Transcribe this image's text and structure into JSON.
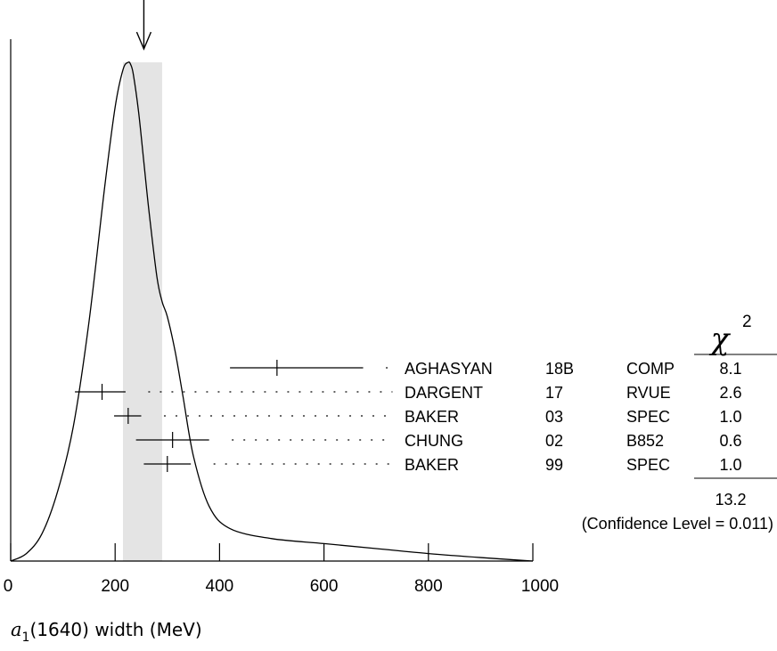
{
  "chart_data": {
    "type": "ideogram",
    "xlabel": {
      "symbol": "a",
      "subscript": "1",
      "rest": "(1640) width (MeV)"
    },
    "xlim": [
      0,
      1000
    ],
    "x_ticks": [
      "0",
      "200",
      "400",
      "600",
      "800",
      "1000"
    ],
    "x_tick_values": [
      0,
      200,
      400,
      600,
      800,
      1000
    ],
    "average": {
      "value": 255,
      "error_low": 215,
      "error_high": 290
    },
    "curve": {
      "x": [
        0,
        30,
        60,
        90,
        120,
        150,
        180,
        200,
        215,
        225,
        230,
        235,
        245,
        255,
        265,
        280,
        290,
        300,
        315,
        330,
        350,
        380,
        420,
        500,
        600,
        700,
        800,
        900,
        1000
      ],
      "y": [
        0.0,
        0.015,
        0.055,
        0.14,
        0.27,
        0.48,
        0.75,
        0.91,
        0.985,
        1.0,
        0.995,
        0.975,
        0.9,
        0.8,
        0.7,
        0.57,
        0.52,
        0.49,
        0.42,
        0.33,
        0.21,
        0.11,
        0.065,
        0.045,
        0.035,
        0.025,
        0.015,
        0.007,
        0.0
      ]
    },
    "measurements": [
      {
        "author": "AGHASYAN",
        "year": "18B",
        "tech": "COMP",
        "chi2": "8.1",
        "value": 510,
        "err_minus": 90,
        "err_plus": 165
      },
      {
        "author": "DARGENT",
        "year": "17",
        "tech": "RVUE",
        "chi2": "2.6",
        "value": 175,
        "err_minus": 52,
        "err_plus": 45
      },
      {
        "author": "BAKER",
        "year": "03",
        "tech": "SPEC",
        "chi2": "1.0",
        "value": 225,
        "err_minus": 27,
        "err_plus": 25
      },
      {
        "author": "CHUNG",
        "year": "02",
        "tech": "B852",
        "chi2": "0.6",
        "value": 310,
        "err_minus": 70,
        "err_plus": 70
      },
      {
        "author": "BAKER",
        "year": "99",
        "tech": "SPEC",
        "chi2": "1.0",
        "value": 300,
        "err_minus": 45,
        "err_plus": 45
      }
    ],
    "chi2_header": {
      "symbol": "χ",
      "superscript": "2"
    },
    "chi2_total": "13.2",
    "confidence_text": "(Confidence Level = 0.011)"
  }
}
